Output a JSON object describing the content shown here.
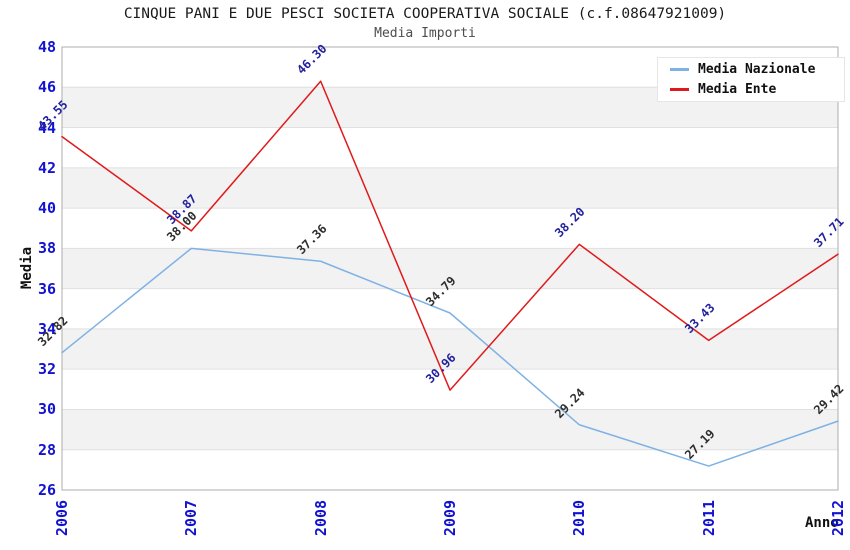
{
  "chart_data": {
    "type": "line",
    "title": "CINQUE PANI E DUE PESCI SOCIETA COOPERATIVA SOCIALE (c.f.08647921009)",
    "subtitle": "Media Importi",
    "xlabel": "Anno",
    "ylabel": "Media",
    "categories": [
      "2006",
      "2007",
      "2008",
      "2009",
      "2010",
      "2011",
      "2012"
    ],
    "series": [
      {
        "name": "Media Nazionale",
        "color": "#7fb2e4",
        "label_color": "#2e2e2e",
        "values": [
          32.82,
          38.0,
          37.36,
          34.79,
          29.24,
          27.19,
          29.42
        ]
      },
      {
        "name": "Media Ente",
        "color": "#e01a1a",
        "label_color": "#22229e",
        "values": [
          43.55,
          38.87,
          46.3,
          30.96,
          38.2,
          33.43,
          37.71
        ]
      }
    ],
    "ylim": [
      26,
      48
    ],
    "ytick_step": 2,
    "grid": "horizontal-bands",
    "legend_position": "top-right",
    "value_label_format": "2-decimals",
    "colors": {
      "tick_label": "#1212cf",
      "band": "#f2f2f2",
      "gridline": "#e0e0e0",
      "plot_border": "#adadad",
      "title": "#1a1a1a",
      "subtitle": "#4d4d4d"
    }
  }
}
